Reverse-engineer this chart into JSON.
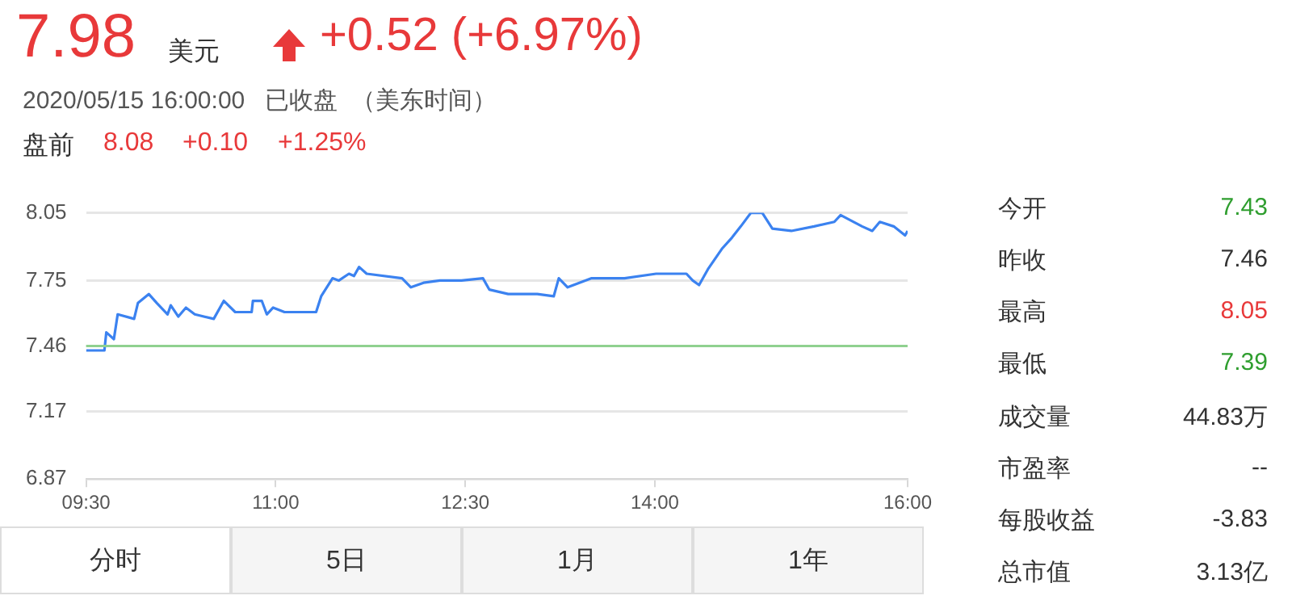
{
  "chart_data": {
    "type": "line",
    "x": [
      9.5,
      9.645,
      9.66,
      9.72,
      9.75,
      9.88,
      9.91,
      9.996,
      10.06,
      10.145,
      10.17,
      10.23,
      10.29,
      10.36,
      10.51,
      10.59,
      10.68,
      10.81,
      10.82,
      10.89,
      10.93,
      10.98,
      11.07,
      11.32,
      11.36,
      11.45,
      11.5,
      11.58,
      11.62,
      11.66,
      11.72,
      12.0,
      12.07,
      12.17,
      12.3,
      12.47,
      12.64,
      12.69,
      12.84,
      13.07,
      13.2,
      13.24,
      13.31,
      13.5,
      13.76,
      14.01,
      14.25,
      14.3,
      14.35,
      14.42,
      14.53,
      14.61,
      14.68,
      14.76,
      14.85,
      14.93,
      15.08,
      15.26,
      15.42,
      15.47,
      15.64,
      15.72,
      15.78,
      15.89,
      15.98,
      16
    ],
    "series": [
      {
        "color": "#3b82f0",
        "values": [
          7.44,
          7.44,
          7.52,
          7.49,
          7.6,
          7.58,
          7.65,
          7.69,
          7.65,
          7.6,
          7.64,
          7.59,
          7.63,
          7.6,
          7.58,
          7.66,
          7.61,
          7.61,
          7.66,
          7.66,
          7.6,
          7.63,
          7.61,
          7.61,
          7.68,
          7.76,
          7.75,
          7.78,
          7.77,
          7.81,
          7.78,
          7.76,
          7.72,
          7.74,
          7.75,
          7.75,
          7.76,
          7.71,
          7.69,
          7.69,
          7.68,
          7.76,
          7.72,
          7.76,
          7.76,
          7.78,
          7.78,
          7.75,
          7.73,
          7.8,
          7.89,
          7.94,
          7.99,
          8.05,
          8.05,
          7.98,
          7.97,
          7.99,
          8.01,
          8.04,
          7.99,
          7.97,
          8.01,
          7.99,
          7.95,
          7.97
        ]
      }
    ],
    "xlim": [
      9.5,
      16
    ],
    "xticks": [
      {
        "value": 9.5,
        "label": "09:30"
      },
      {
        "value": 11,
        "label": "11:00"
      },
      {
        "value": 12.5,
        "label": "12:30"
      },
      {
        "value": 14,
        "label": "14:00"
      },
      {
        "value": 16,
        "label": "16:00"
      }
    ],
    "ylim": [
      6.87,
      8.05
    ],
    "yticks": [
      6.87,
      7.17,
      7.46,
      7.75,
      8.05
    ],
    "ref_lines": [
      {
        "axis": "y",
        "value": 7.46,
        "color": "#8fd18f"
      }
    ],
    "grid": "y",
    "marker": "none",
    "line_style": "solid",
    "legend": false,
    "annotations": [
      "7.98",
      "美元",
      "+0.52 (+6.97%)",
      "2020/05/15 16:00:00   已收盘  （美东时间）",
      "盘前",
      "8.08",
      "+0.10",
      "+1.25%",
      "今开",
      "7.43",
      "昨收",
      "7.46",
      "最高",
      "8.05",
      "最低",
      "7.39",
      "成交量",
      "44.83万",
      "市盈率",
      "--",
      "每股收益",
      "-3.83",
      "总市值",
      "3.13亿",
      "分时",
      "5日",
      "1月",
      "1年"
    ]
  }
}
